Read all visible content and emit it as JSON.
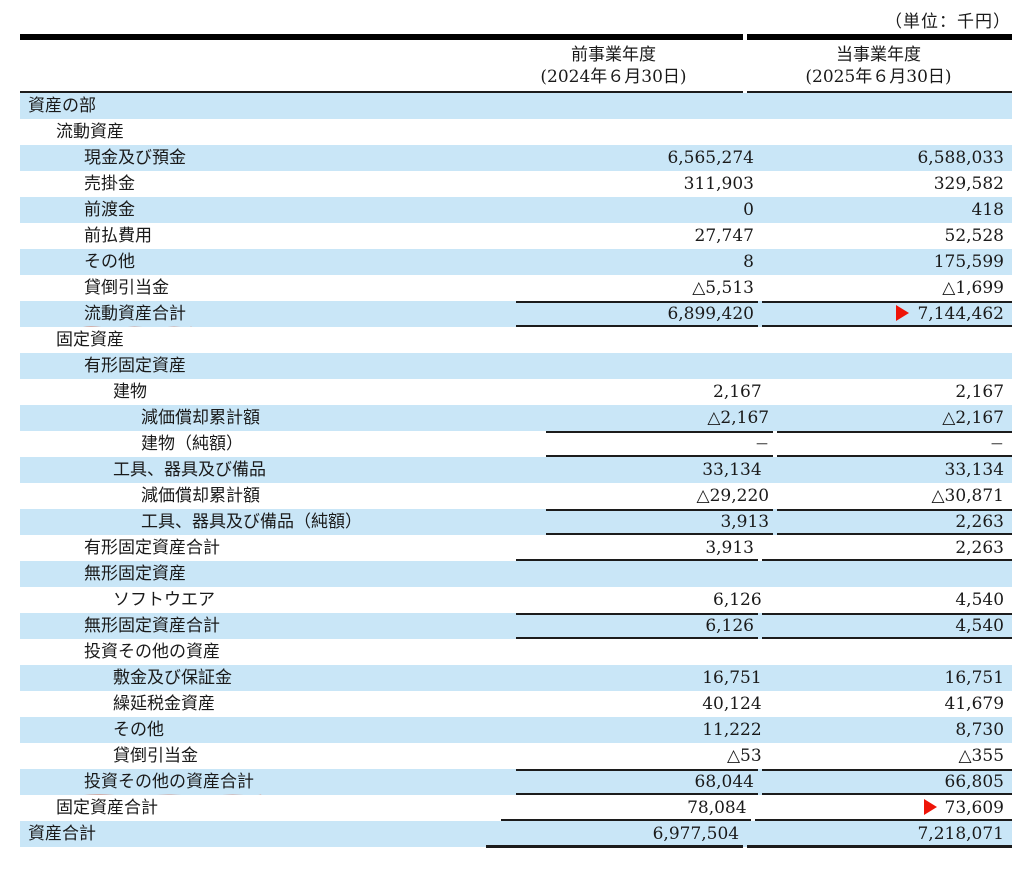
{
  "meta": {
    "unit_note": "（単位：千円）"
  },
  "header": {
    "prior_year_line1": "前事業年度",
    "prior_year_line2": "(2024年６月30日)",
    "current_year_line1": "当事業年度",
    "current_year_line2": "(2025年６月30日)"
  },
  "colors": {
    "row_highlight": "#c9e6f7",
    "rule_line": "#1c1c1c",
    "marker_red": "#ee1408",
    "underline_red": "#e0542c"
  },
  "rows": [
    {
      "label": "資産の部",
      "indent": 0,
      "v1": "",
      "v2": "",
      "shade": true
    },
    {
      "label": "流動資産",
      "indent": 1,
      "v1": "",
      "v2": "",
      "shade": false
    },
    {
      "label": "現金及び預金",
      "indent": 2,
      "v1": "6,565,274",
      "v2": "6,588,033",
      "shade": true
    },
    {
      "label": "売掛金",
      "indent": 2,
      "v1": "311,903",
      "v2": "329,582",
      "shade": false
    },
    {
      "label": "前渡金",
      "indent": 2,
      "v1": "0",
      "v2": "418",
      "shade": true
    },
    {
      "label": "前払費用",
      "indent": 2,
      "v1": "27,747",
      "v2": "52,528",
      "shade": false
    },
    {
      "label": "その他",
      "indent": 2,
      "v1": "8",
      "v2": "175,599",
      "shade": true
    },
    {
      "label": "貸倒引当金",
      "indent": 2,
      "v1": "△5,513",
      "v2": "△1,699",
      "shade": false
    },
    {
      "label": "流動資産合計",
      "indent": 2,
      "v1": "6,899,420",
      "v2": "7,144,462",
      "shade": true,
      "lineAbove": true,
      "lineBelow": true,
      "marker2": true,
      "redUnderline": true
    },
    {
      "label": "固定資産",
      "indent": 1,
      "v1": "",
      "v2": "",
      "shade": false
    },
    {
      "label": "有形固定資産",
      "indent": 2,
      "v1": "",
      "v2": "",
      "shade": true
    },
    {
      "label": "建物",
      "indent": 3,
      "v1": "2,167",
      "v2": "2,167",
      "shade": false
    },
    {
      "label": "減価償却累計額",
      "indent": 4,
      "v1": "△2,167",
      "v2": "△2,167",
      "shade": true
    },
    {
      "label": "建物（純額）",
      "indent": 4,
      "v1": "−",
      "v2": "−",
      "shade": false,
      "lineAbove": true,
      "lineBelow": true
    },
    {
      "label": "工具、器具及び備品",
      "indent": 3,
      "v1": "33,134",
      "v2": "33,134",
      "shade": true
    },
    {
      "label": "減価償却累計額",
      "indent": 4,
      "v1": "△29,220",
      "v2": "△30,871",
      "shade": false
    },
    {
      "label": "工具、器具及び備品（純額）",
      "indent": 4,
      "v1": "3,913",
      "v2": "2,263",
      "shade": true,
      "lineAbove": true,
      "lineBelow": true
    },
    {
      "label": "有形固定資産合計",
      "indent": 2,
      "v1": "3,913",
      "v2": "2,263",
      "shade": false,
      "lineBelow": true
    },
    {
      "label": "無形固定資産",
      "indent": 2,
      "v1": "",
      "v2": "",
      "shade": true
    },
    {
      "label": "ソフトウエア",
      "indent": 3,
      "v1": "6,126",
      "v2": "4,540",
      "shade": false
    },
    {
      "label": "無形固定資産合計",
      "indent": 2,
      "v1": "6,126",
      "v2": "4,540",
      "shade": true,
      "lineAbove": true,
      "lineBelow": true
    },
    {
      "label": "投資その他の資産",
      "indent": 2,
      "v1": "",
      "v2": "",
      "shade": false
    },
    {
      "label": "敷金及び保証金",
      "indent": 3,
      "v1": "16,751",
      "v2": "16,751",
      "shade": true
    },
    {
      "label": "繰延税金資産",
      "indent": 3,
      "v1": "40,124",
      "v2": "41,679",
      "shade": false
    },
    {
      "label": "その他",
      "indent": 3,
      "v1": "11,222",
      "v2": "8,730",
      "shade": true
    },
    {
      "label": "貸倒引当金",
      "indent": 3,
      "v1": "△53",
      "v2": "△355",
      "shade": false
    },
    {
      "label": "投資その他の資産合計",
      "indent": 2,
      "v1": "68,044",
      "v2": "66,805",
      "shade": true,
      "lineAbove": true,
      "lineBelow": true,
      "redUnderline": true
    },
    {
      "label": "固定資産合計",
      "indent": 1,
      "v1": "78,084",
      "v2": "73,609",
      "shade": false,
      "lineBelow": true,
      "marker2": true
    },
    {
      "label": "資産合計",
      "indent": 0,
      "v1": "6,977,504",
      "v2": "7,218,071",
      "shade": true,
      "lineBelowThick": true
    }
  ]
}
